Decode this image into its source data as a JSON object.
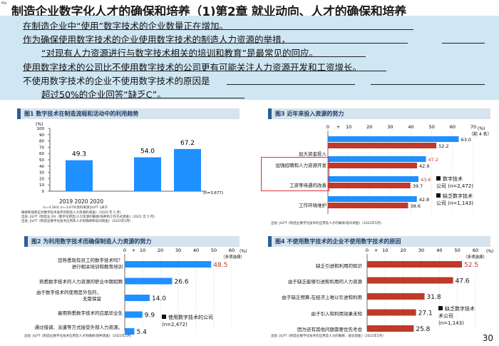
{
  "header": {
    "meta": "Me",
    "title": "制造企业数字化人才的确保和培养（1)第2章 就业动向、人才的确保和培养"
  },
  "summary": {
    "line1": "在制造企业中“使用”数字技术的企业数量正在增加。",
    "line2": "作为确保使用数字技术的企业使用数字技术的制造人力资源的举措，",
    "line3": "“对现有人力资源进行与数字技术相关的培训和教育”是最常见的回应。",
    "line4": "使用数字技术的公司比不使用数字技术的公司更有可能关注人力资源开发和工资增长。",
    "line5": "不使用数字技术的企业不使用数字技术的原因是",
    "line6": "超过50%的企业回答“缺乏C”。"
  },
  "fig1": {
    "title": "图1 数字技术在制造流程和活动中的利用趋势",
    "unit": "(%)",
    "y_ticks": [
      "100",
      "90",
      "80",
      "70",
      "60",
      "50",
      "40",
      "30",
      "20",
      "10",
      "0"
    ],
    "values_text": [
      "49.3",
      "54.0",
      "67.2"
    ],
    "years_text": "2019 2020 2020",
    "note_n": "(n=4,364) (n=3,679)资料来源:JILPT《关于",
    "note_2": "确保和培养应对数字技术进步的制造人力资源的调查》（2020 年 5 月)",
    "note_3": "出处: JILPT《制造业 DX（数字化转型)人力资源的确保/培养和工作方式调查》（2021 年 5 月)",
    "note_4": "出处: JILPT《制造业数字化技术应用及人才的确保和培训调查》（2022年5月)",
    "n3": "(n=3,677)"
  },
  "fig2": {
    "title": "图2 为利用数字技术而确保制造人力资源的努力",
    "axis_ticks": [
      "0",
      "+",
      "10",
      "20",
      "30",
      "40",
      "50",
      "60"
    ],
    "unit": "(%)",
    "multi_note": "（多项选择）",
    "labels": [
      "您熟悉现有员工的数字技术吗？\n进行相关培训和教育培训",
      "熟悉数字技术的人力资源的职业中期招聘",
      "由于数字技术的使用是外包的，\n无需保留",
      "雇用熟悉数字技术的应届毕业生",
      "通过借调、派遣等方式接受外部人力资源。"
    ],
    "values_text": [
      "48.5",
      "26.6",
      "14.0",
      "9.9",
      "5.4"
    ],
    "legend": "使用数字技术的公司",
    "legend_n": "(n=2,472)",
    "source": "出处: JILPT《制造业数字化技术应用及人才的确保/培养调查》（2022年5月)"
  },
  "fig3": {
    "title": "图3 近年来投入资源的努力",
    "axis_ticks": [
      "0",
      "+",
      "10",
      "20",
      "30",
      "40",
      "50",
      "60",
      "70"
    ],
    "unit": "(%)",
    "rank_note": "（前 4 名）",
    "labels": [
      "加大资金投入",
      "加强招聘和人力资源开发",
      "工资等待遇的改善",
      "工作环境维护"
    ],
    "values_text": [
      [
        "63.0",
        "52.2"
      ],
      [
        "47.2",
        "42.9"
      ],
      [
        "43.6",
        "39.7"
      ],
      [
        "42.8",
        "38.6"
      ]
    ],
    "legend_use": "数字技术",
    "legend_use2": "公司 (n=2,472)",
    "legend_no": "缺乏数字技术",
    "legend_no2": "公司 (n=1,143)",
    "source": "出处: JILPT《制造业数字化技术的应用及人才的确保/培训调查》（2022年5月)"
  },
  "fig4": {
    "title": "图4 不使用数字技术的企业不使用数字技术的原因",
    "axis_ticks": [
      "0",
      "+",
      "10",
      "20",
      "30",
      "40",
      "50",
      "60"
    ],
    "unit": "(%)",
    "multi_note": "（多项选择）",
    "labels": [
      "缺乏引进和利用的知识",
      "由于缺乏能够引进和利用的人力资源",
      "由于缺乏预算,在经济上难以引进和利用",
      "由于引入和利用效果未知",
      "因为还有其他问题需要优先考虑"
    ],
    "values_text": [
      "52.5",
      "47.6",
      "31.8",
      "27.1",
      "25.8"
    ],
    "legend": "缺乏数字技术",
    "legend2": "术公司",
    "legend_n": "(n=1,143)",
    "source": "出处: JILPT《制造业数字化技术的应用及人力的确保、培训调查》（2022年5月)"
  },
  "chart_data": [
    {
      "type": "bar",
      "title": "图1 数字技术在制造流程和活动中的利用趋势",
      "categories": [
        "2019",
        "2020",
        "2020"
      ],
      "values": [
        49.3,
        54.0,
        67.2
      ],
      "ylabel": "(%)",
      "ylim": [
        0,
        100
      ]
    },
    {
      "type": "bar",
      "title": "图2 为利用数字技术而确保制造人力资源的努力",
      "categories": [
        "您熟悉现有员工的数字技术吗？进行相关培训和教育培训",
        "熟悉数字技术的人力资源的职业中期招聘",
        "由于数字技术的使用是外包的，无需保留",
        "雇用熟悉数字技术的应届毕业生",
        "通过借调、派遣等方式接受外部人力资源。"
      ],
      "series": [
        {
          "name": "使用数字技术的公司 (n=2,472)",
          "values": [
            48.5,
            26.6,
            14.0,
            9.9,
            5.4
          ]
        }
      ],
      "xlim": [
        0,
        60
      ]
    },
    {
      "type": "bar",
      "title": "图3 近年来投入资源的努力",
      "categories": [
        "加大资金投入",
        "加强招聘和人力资源开发",
        "工资等待遇的改善",
        "工作环境维护"
      ],
      "series": [
        {
          "name": "数字技术公司 (n=2,472)",
          "values": [
            63.0,
            47.2,
            43.6,
            42.8
          ]
        },
        {
          "name": "缺乏数字技术公司 (n=1,143)",
          "values": [
            52.2,
            42.9,
            39.7,
            38.6
          ]
        }
      ],
      "xlim": [
        0,
        70
      ]
    },
    {
      "type": "bar",
      "title": "图4 不使用数字技术的企业不使用数字技术的原因",
      "categories": [
        "缺乏引进和利用的知识",
        "由于缺乏能够引进和利用的人力资源",
        "由于缺乏预算,在经济上难以引进和利用",
        "由于引入和利用效果未知",
        "因为还有其他问题需要优先考虑"
      ],
      "series": [
        {
          "name": "缺乏数字技术公司 (n=1,143)",
          "values": [
            52.5,
            47.6,
            31.8,
            27.1,
            25.8
          ]
        }
      ],
      "xlim": [
        0,
        60
      ]
    }
  ],
  "page": {
    "number": "30"
  },
  "colors": {
    "blue": "#1e90ff",
    "red": "#c0392b",
    "light_blue_bg": "#cfe6f3",
    "header_bg": "#d7e3ee"
  }
}
